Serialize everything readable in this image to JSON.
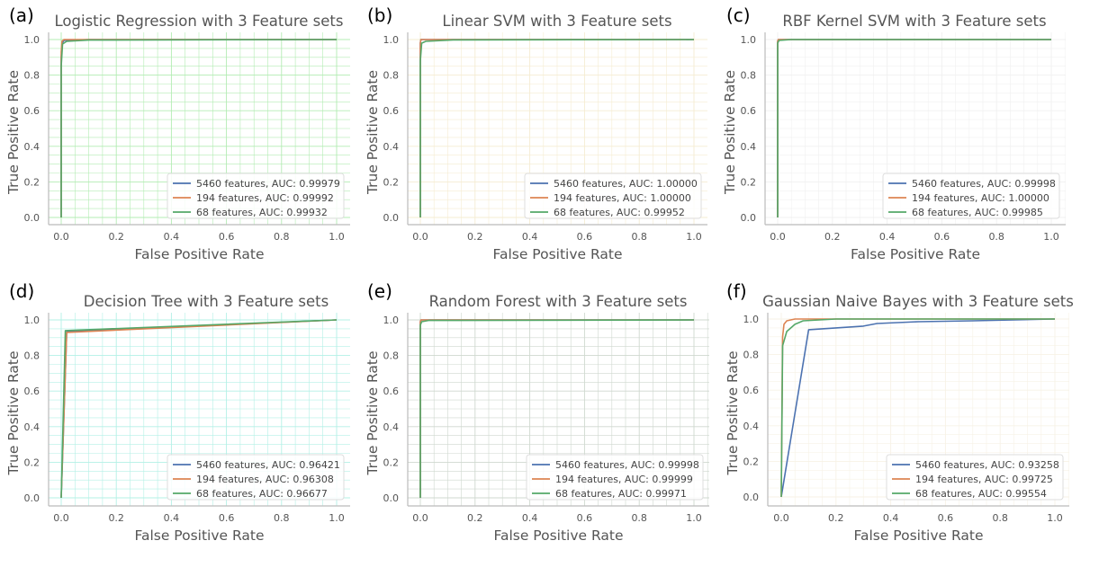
{
  "chart_data": [
    {
      "type": "line",
      "panel": "(a)",
      "title": "Logistic Regression with 3 Feature sets",
      "xlabel": "False Positive Rate",
      "ylabel": "True Positive Rate",
      "xlim": [
        0,
        1
      ],
      "ylim": [
        0,
        1
      ],
      "xticks": [
        "0.0",
        "0.2",
        "0.4",
        "0.6",
        "0.8",
        "1.0"
      ],
      "yticks": [
        "0.0",
        "0.2",
        "0.4",
        "0.6",
        "0.8",
        "1.0"
      ],
      "grid": true,
      "grid_color": "#b3ecb3",
      "legend_position": "lower right",
      "series": [
        {
          "name": "5460 features, AUC: 0.99979",
          "color": "#4c72b0",
          "x": [
            0,
            0,
            0.004,
            0.01,
            0.1,
            1
          ],
          "y": [
            0,
            0.9,
            0.98,
            0.995,
            1,
            1
          ]
        },
        {
          "name": "194 features, AUC: 0.99992",
          "color": "#dd8452",
          "x": [
            0,
            0,
            0.003,
            0.01,
            1
          ],
          "y": [
            0,
            0.93,
            0.99,
            1,
            1
          ]
        },
        {
          "name": "68 features, AUC: 0.99932",
          "color": "#55a868",
          "x": [
            0,
            0,
            0.005,
            0.02,
            0.1,
            1
          ],
          "y": [
            0,
            0.85,
            0.975,
            0.99,
            0.997,
            1
          ]
        }
      ]
    },
    {
      "type": "line",
      "panel": "(b)",
      "title": "Linear SVM with 3 Feature sets",
      "xlabel": "False Positive Rate",
      "ylabel": "True Positive Rate",
      "xlim": [
        0,
        1
      ],
      "ylim": [
        0,
        1
      ],
      "xticks": [
        "0.0",
        "0.2",
        "0.4",
        "0.6",
        "0.8",
        "1.0"
      ],
      "yticks": [
        "0.0",
        "0.2",
        "0.4",
        "0.6",
        "0.8",
        "1.0"
      ],
      "grid": true,
      "grid_color": "#f5ecd2",
      "legend_position": "lower right",
      "series": [
        {
          "name": "5460 features, AUC: 1.00000",
          "color": "#4c72b0",
          "x": [
            0,
            0,
            0.002,
            1
          ],
          "y": [
            0,
            0.98,
            1,
            1
          ]
        },
        {
          "name": "194 features, AUC: 1.00000",
          "color": "#dd8452",
          "x": [
            0,
            0,
            0.002,
            1
          ],
          "y": [
            0,
            0.98,
            1,
            1
          ]
        },
        {
          "name": "68 features, AUC: 0.99952",
          "color": "#55a868",
          "x": [
            0,
            0,
            0.005,
            0.02,
            0.12,
            1
          ],
          "y": [
            0,
            0.88,
            0.98,
            0.99,
            0.998,
            1
          ]
        }
      ]
    },
    {
      "type": "line",
      "panel": "(c)",
      "title": "RBF Kernel SVM with 3 Feature sets",
      "xlabel": "False Positive Rate",
      "ylabel": "True Positive Rate",
      "xlim": [
        0,
        1
      ],
      "ylim": [
        0,
        1
      ],
      "xticks": [
        "0.0",
        "0.2",
        "0.4",
        "0.6",
        "0.8",
        "1.0"
      ],
      "yticks": [
        "0.0",
        "0.2",
        "0.4",
        "0.6",
        "0.8",
        "1.0"
      ],
      "grid": true,
      "grid_color": "#f0f0f0",
      "legend_position": "lower right",
      "series": [
        {
          "name": "5460 features, AUC: 0.99998",
          "color": "#4c72b0",
          "x": [
            0,
            0,
            0.003,
            1
          ],
          "y": [
            0,
            0.99,
            1,
            1
          ]
        },
        {
          "name": "194 features, AUC: 1.00000",
          "color": "#dd8452",
          "x": [
            0,
            0,
            0.002,
            1
          ],
          "y": [
            0,
            0.99,
            1,
            1
          ]
        },
        {
          "name": "68 features, AUC: 0.99985",
          "color": "#55a868",
          "x": [
            0,
            0,
            0.005,
            0.05,
            1
          ],
          "y": [
            0,
            0.98,
            0.995,
            1,
            1
          ]
        }
      ]
    },
    {
      "type": "line",
      "panel": "(d)",
      "title": "Decision Tree with 3 Feature sets",
      "xlabel": "False Positive Rate",
      "ylabel": "True Positive Rate",
      "xlim": [
        0,
        1
      ],
      "ylim": [
        0,
        1
      ],
      "xticks": [
        "0.0",
        "0.2",
        "0.4",
        "0.6",
        "0.8",
        "1.0"
      ],
      "yticks": [
        "0.0",
        "0.2",
        "0.4",
        "0.6",
        "0.8",
        "1.0"
      ],
      "grid": true,
      "grid_color": "#b3f0e6",
      "legend_position": "lower right",
      "series": [
        {
          "name": "5460 features, AUC: 0.96421",
          "color": "#4c72b0",
          "x": [
            0,
            0.02,
            1
          ],
          "y": [
            0,
            0.935,
            1
          ]
        },
        {
          "name": "194 features, AUC: 0.96308",
          "color": "#dd8452",
          "x": [
            0,
            0.02,
            1
          ],
          "y": [
            0,
            0.93,
            1
          ]
        },
        {
          "name": "68 features, AUC: 0.96677",
          "color": "#55a868",
          "x": [
            0,
            0.015,
            1
          ],
          "y": [
            0,
            0.94,
            1
          ]
        }
      ]
    },
    {
      "type": "line",
      "panel": "(e)",
      "title": "Random Forest with 3 Feature sets",
      "xlabel": "False Positive Rate",
      "ylabel": "True Positive Rate",
      "xlim": [
        0,
        1
      ],
      "ylim": [
        0,
        1
      ],
      "xticks": [
        "0.0",
        "0.2",
        "0.4",
        "0.6",
        "0.8",
        "1.0"
      ],
      "yticks": [
        "0.0",
        "0.2",
        "0.4",
        "0.6",
        "0.8",
        "1.0"
      ],
      "grid": true,
      "grid_color": "#cfd8cf",
      "legend_position": "lower right",
      "series": [
        {
          "name": "5460 features, AUC: 0.99998",
          "color": "#4c72b0",
          "x": [
            0,
            0,
            0.003,
            1
          ],
          "y": [
            0,
            0.99,
            1,
            1
          ]
        },
        {
          "name": "194 features, AUC: 0.99999",
          "color": "#dd8452",
          "x": [
            0,
            0,
            0.002,
            1
          ],
          "y": [
            0,
            0.99,
            1,
            1
          ]
        },
        {
          "name": "68 features, AUC: 0.99971",
          "color": "#55a868",
          "x": [
            0,
            0,
            0.005,
            0.03,
            1
          ],
          "y": [
            0,
            0.97,
            0.99,
            0.997,
            1
          ]
        }
      ]
    },
    {
      "type": "line",
      "panel": "(f)",
      "title": "Gaussian Naive Bayes with 3 Feature sets",
      "xlabel": "False Positive Rate",
      "ylabel": "True Positive Rate",
      "xlim": [
        0,
        1
      ],
      "ylim": [
        0,
        1
      ],
      "xticks": [
        "0.0",
        "0.2",
        "0.4",
        "0.6",
        "0.8",
        "1.0"
      ],
      "yticks": [
        "0.0",
        "0.2",
        "0.4",
        "0.6",
        "0.8",
        "1.0"
      ],
      "grid": true,
      "grid_color": "#f7f2e6",
      "legend_position": "lower right",
      "series": [
        {
          "name": "5460 features, AUC: 0.93258",
          "color": "#4c72b0",
          "x": [
            0,
            0.1,
            0.2,
            0.3,
            0.35,
            0.5,
            0.7,
            1
          ],
          "y": [
            0,
            0.94,
            0.95,
            0.96,
            0.975,
            0.985,
            0.99,
            1
          ]
        },
        {
          "name": "194 features, AUC: 0.99725",
          "color": "#dd8452",
          "x": [
            0,
            0.005,
            0.01,
            0.02,
            0.05,
            1
          ],
          "y": [
            0,
            0.9,
            0.97,
            0.99,
            1,
            1
          ]
        },
        {
          "name": "68 features, AUC: 0.99554",
          "color": "#55a868",
          "x": [
            0,
            0.005,
            0.02,
            0.05,
            0.08,
            0.2,
            1
          ],
          "y": [
            0,
            0.85,
            0.93,
            0.97,
            0.99,
            1,
            1
          ]
        }
      ]
    }
  ]
}
